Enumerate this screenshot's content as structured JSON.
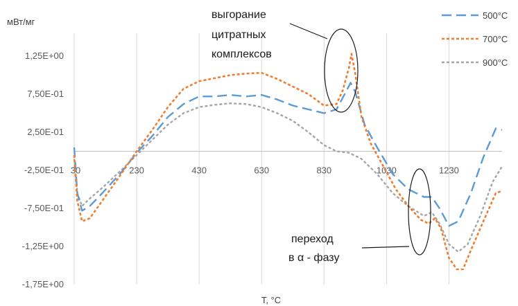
{
  "chart_data": {
    "type": "line",
    "ylabel": "мВт/мг",
    "xlabel": "T, °C",
    "xlim": [
      30,
      1400
    ],
    "ylim": [
      -1.75,
      1.55
    ],
    "y_ticks": [
      "1,25E+00",
      "7,50E-01",
      "2,50E-01",
      "-2,50E-01",
      "-7,50E-01",
      "-1,25E+00",
      "-1,75E+00"
    ],
    "y_tick_values": [
      1.25,
      0.75,
      0.25,
      -0.25,
      -0.75,
      -1.25,
      -1.75
    ],
    "x_ticks": [
      "30",
      "230",
      "430",
      "630",
      "830",
      "1030",
      "1230"
    ],
    "x_tick_values": [
      30,
      230,
      430,
      630,
      830,
      1030,
      1230
    ],
    "grid": "vertical",
    "legend_position": "top-right",
    "annotations": [
      {
        "lines": [
          "выгорание",
          "цитратных",
          "комплексов"
        ]
      },
      {
        "lines": [
          "переход",
          "в α - фазу"
        ]
      }
    ],
    "series": [
      {
        "name": "500°C",
        "color": "#5b9bd5",
        "dash": "dashed",
        "points": [
          [
            30,
            0.05
          ],
          [
            40,
            -0.55
          ],
          [
            55,
            -0.78
          ],
          [
            80,
            -0.72
          ],
          [
            120,
            -0.55
          ],
          [
            180,
            -0.28
          ],
          [
            230,
            -0.02
          ],
          [
            280,
            0.2
          ],
          [
            330,
            0.45
          ],
          [
            380,
            0.62
          ],
          [
            430,
            0.72
          ],
          [
            480,
            0.72
          ],
          [
            530,
            0.74
          ],
          [
            580,
            0.72
          ],
          [
            630,
            0.74
          ],
          [
            680,
            0.68
          ],
          [
            730,
            0.6
          ],
          [
            780,
            0.55
          ],
          [
            830,
            0.5
          ],
          [
            870,
            0.55
          ],
          [
            900,
            0.78
          ],
          [
            915,
            0.9
          ],
          [
            930,
            0.78
          ],
          [
            960,
            0.35
          ],
          [
            1000,
            0.05
          ],
          [
            1050,
            -0.3
          ],
          [
            1100,
            -0.5
          ],
          [
            1150,
            -0.6
          ],
          [
            1175,
            -0.6
          ],
          [
            1200,
            -0.75
          ],
          [
            1230,
            -0.98
          ],
          [
            1260,
            -0.92
          ],
          [
            1300,
            -0.55
          ],
          [
            1340,
            -0.08
          ],
          [
            1380,
            0.3
          ],
          [
            1400,
            0.28
          ]
        ]
      },
      {
        "name": "700°C",
        "color": "#ed7d31",
        "dash": "dotted",
        "points": [
          [
            30,
            -0.05
          ],
          [
            40,
            -0.65
          ],
          [
            55,
            -0.92
          ],
          [
            80,
            -0.88
          ],
          [
            120,
            -0.65
          ],
          [
            180,
            -0.3
          ],
          [
            230,
            0.0
          ],
          [
            280,
            0.28
          ],
          [
            330,
            0.58
          ],
          [
            380,
            0.82
          ],
          [
            430,
            0.92
          ],
          [
            480,
            0.96
          ],
          [
            530,
            1.0
          ],
          [
            580,
            1.02
          ],
          [
            630,
            1.03
          ],
          [
            680,
            0.95
          ],
          [
            730,
            0.85
          ],
          [
            780,
            0.75
          ],
          [
            830,
            0.6
          ],
          [
            870,
            0.62
          ],
          [
            890,
            0.8
          ],
          [
            910,
            1.1
          ],
          [
            918,
            1.28
          ],
          [
            930,
            1.02
          ],
          [
            950,
            0.45
          ],
          [
            980,
            0.1
          ],
          [
            1020,
            -0.2
          ],
          [
            1060,
            -0.5
          ],
          [
            1100,
            -0.72
          ],
          [
            1140,
            -0.9
          ],
          [
            1165,
            -0.95
          ],
          [
            1185,
            -0.88
          ],
          [
            1205,
            -1.02
          ],
          [
            1230,
            -1.4
          ],
          [
            1255,
            -1.55
          ],
          [
            1275,
            -1.55
          ],
          [
            1300,
            -1.3
          ],
          [
            1340,
            -0.92
          ],
          [
            1380,
            -0.55
          ],
          [
            1400,
            -0.52
          ]
        ]
      },
      {
        "name": "900°C",
        "color": "#a5a5a5",
        "dash": "dotted",
        "points": [
          [
            30,
            -0.1
          ],
          [
            40,
            -0.55
          ],
          [
            55,
            -0.72
          ],
          [
            80,
            -0.62
          ],
          [
            120,
            -0.48
          ],
          [
            180,
            -0.25
          ],
          [
            230,
            -0.05
          ],
          [
            280,
            0.15
          ],
          [
            330,
            0.35
          ],
          [
            380,
            0.5
          ],
          [
            430,
            0.58
          ],
          [
            480,
            0.61
          ],
          [
            530,
            0.63
          ],
          [
            580,
            0.62
          ],
          [
            630,
            0.58
          ],
          [
            680,
            0.5
          ],
          [
            730,
            0.4
          ],
          [
            780,
            0.25
          ],
          [
            830,
            0.08
          ],
          [
            870,
            0.0
          ],
          [
            910,
            -0.02
          ],
          [
            950,
            -0.1
          ],
          [
            1000,
            -0.3
          ],
          [
            1050,
            -0.55
          ],
          [
            1100,
            -0.72
          ],
          [
            1150,
            -0.85
          ],
          [
            1175,
            -0.8
          ],
          [
            1200,
            -0.95
          ],
          [
            1230,
            -1.22
          ],
          [
            1260,
            -1.32
          ],
          [
            1290,
            -1.22
          ],
          [
            1330,
            -0.85
          ],
          [
            1370,
            -0.4
          ],
          [
            1400,
            -0.2
          ]
        ]
      }
    ]
  }
}
